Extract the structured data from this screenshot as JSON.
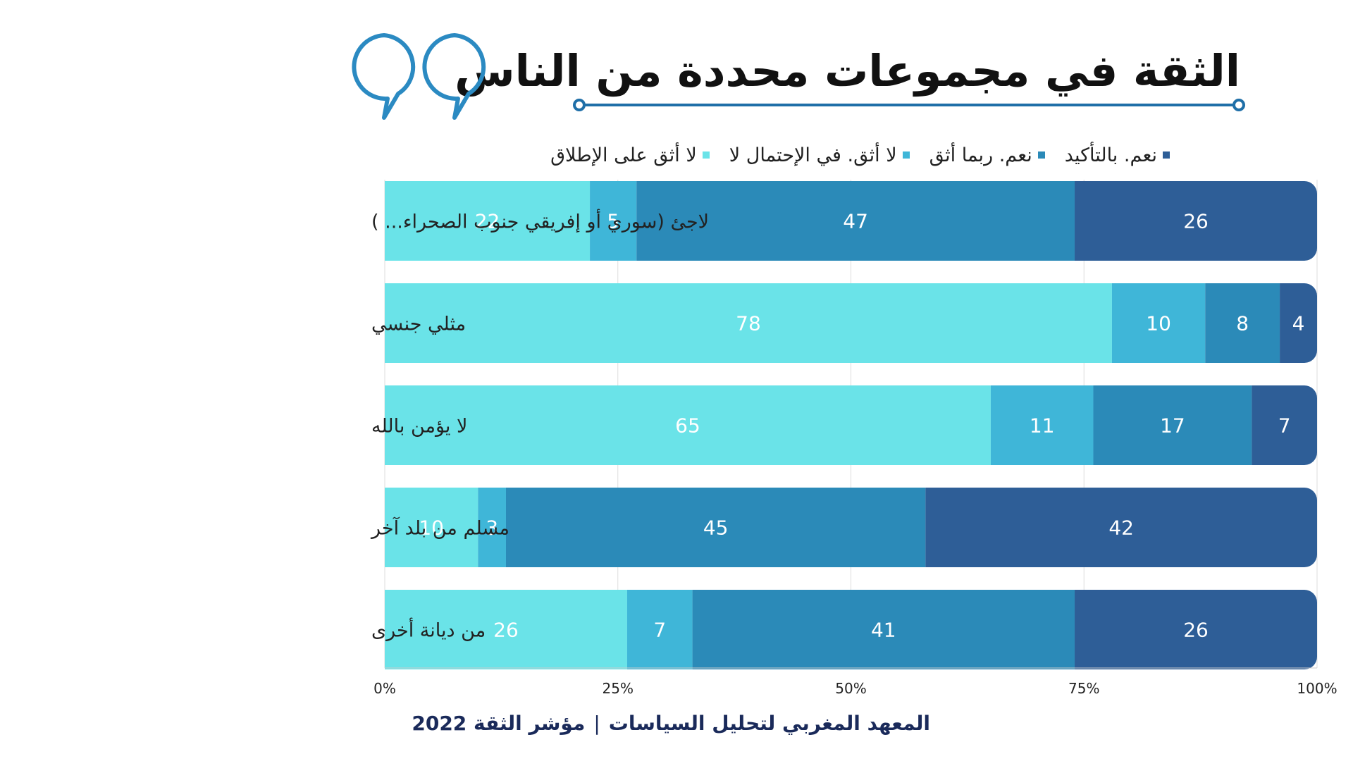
{
  "title": "الثقة في مجموعات محددة من الناس",
  "footer": {
    "institute": "المعهد المغربي لتحليل السياسات",
    "separator": "|",
    "index": "مؤشر الثقة 2022"
  },
  "icons": {
    "quote": "quote-marks-icon"
  },
  "colors": {
    "accent": "#2b8ac2",
    "title_underline": "#1f6fa8"
  },
  "chart_data": {
    "type": "bar",
    "orientation": "horizontal",
    "stacked": true,
    "categories": [
      "لاجئ (سوري أو إفريقي جنوب الصحراء... )",
      "مثلي جنسي",
      "لا يؤمن بالله",
      "مسلم من بلد آخر",
      "من ديانة أخرى"
    ],
    "series": [
      {
        "name": "لا أثق على الإطلاق",
        "color": "#6ae3e8",
        "values": [
          22,
          78,
          65,
          10,
          26
        ]
      },
      {
        "name": "لا أثق. في الإحتمال لا",
        "color": "#3fb6d8",
        "values": [
          5,
          10,
          11,
          3,
          7
        ]
      },
      {
        "name": "نعم. ربما أثق",
        "color": "#2b8ab8",
        "values": [
          47,
          8,
          17,
          45,
          41
        ]
      },
      {
        "name": "نعم. بالتأكيد",
        "color": "#2e5e97",
        "values": [
          26,
          4,
          7,
          42,
          26
        ]
      }
    ],
    "xlim": [
      0,
      100
    ],
    "xticks": [
      "0%",
      "25%",
      "50%",
      "75%",
      "100%"
    ],
    "grid": true,
    "legend_position": "top"
  }
}
